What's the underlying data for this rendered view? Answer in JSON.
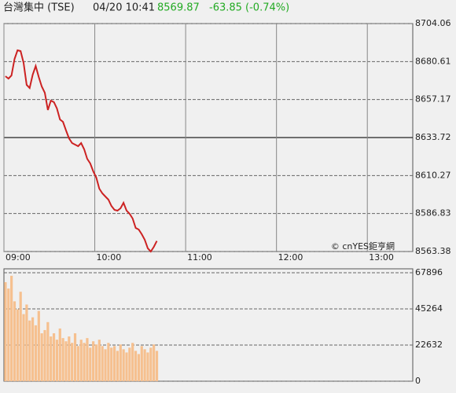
{
  "header": {
    "title": "台灣集中 (TSE)",
    "time": "04/20 10:41",
    "price": "8569.87",
    "change": "-63.85 (-0.74%)"
  },
  "watermark": "© cnYES鉅亨網",
  "chart_data": [
    {
      "type": "line",
      "color": "#cc2222",
      "x": [
        "09:01",
        "09:03",
        "09:05",
        "09:07",
        "09:09",
        "09:11",
        "09:13",
        "09:15",
        "09:17",
        "09:19",
        "09:21",
        "09:23",
        "09:25",
        "09:27",
        "09:29",
        "09:31",
        "09:33",
        "09:35",
        "09:37",
        "09:39",
        "09:41",
        "09:43",
        "09:45",
        "09:47",
        "09:49",
        "09:51",
        "09:53",
        "09:55",
        "09:57",
        "09:59",
        "10:01",
        "10:03",
        "10:05",
        "10:07",
        "10:09",
        "10:11",
        "10:13",
        "10:15",
        "10:17",
        "10:19",
        "10:21",
        "10:23",
        "10:25",
        "10:27",
        "10:29",
        "10:31",
        "10:33",
        "10:35",
        "10:37",
        "10:39",
        "10:41"
      ],
      "values": [
        8671.56,
        8670.1,
        8672.04,
        8682.23,
        8687.57,
        8687.08,
        8679.8,
        8666.22,
        8664.28,
        8672.53,
        8677.86,
        8671.07,
        8665.25,
        8661.37,
        8650.7,
        8656.52,
        8655.55,
        8651.67,
        8644.88,
        8643.42,
        8638.09,
        8633.24,
        8630.32,
        8629.35,
        8628.38,
        8630.32,
        8626.44,
        8620.62,
        8617.71,
        8612.86,
        8608.98,
        8602.19,
        8599.28,
        8597.34,
        8595.4,
        8591.52,
        8589.09,
        8588.61,
        8590.06,
        8593.46,
        8588.61,
        8586.67,
        8583.76,
        8577.93,
        8576.96,
        8574.05,
        8570.66,
        8565.32,
        8563.38,
        8566.29,
        8569.87
      ],
      "xlim": [
        "09:00",
        "13:30"
      ],
      "xticks": [
        "09:00",
        "10:00",
        "11:00",
        "12:00",
        "13:00"
      ],
      "ylim": [
        8563.38,
        8704.06
      ],
      "yticks": [
        8704.06,
        8680.61,
        8657.17,
        8633.72,
        8610.27,
        8586.83,
        8563.38
      ],
      "previous_close": 8633.72
    },
    {
      "type": "bar",
      "color": "#f6c08f",
      "x": [
        "09:01",
        "09:03",
        "09:05",
        "09:07",
        "09:09",
        "09:11",
        "09:13",
        "09:15",
        "09:17",
        "09:19",
        "09:21",
        "09:23",
        "09:25",
        "09:27",
        "09:29",
        "09:31",
        "09:33",
        "09:35",
        "09:37",
        "09:39",
        "09:41",
        "09:43",
        "09:45",
        "09:47",
        "09:49",
        "09:51",
        "09:53",
        "09:55",
        "09:57",
        "09:59",
        "10:01",
        "10:03",
        "10:05",
        "10:07",
        "10:09",
        "10:11",
        "10:13",
        "10:15",
        "10:17",
        "10:19",
        "10:21",
        "10:23",
        "10:25",
        "10:27",
        "10:29",
        "10:31",
        "10:33",
        "10:35",
        "10:37",
        "10:39",
        "10:41"
      ],
      "values": [
        62000,
        58000,
        66000,
        50000,
        45000,
        56000,
        42000,
        48000,
        38000,
        40000,
        35000,
        44000,
        30000,
        32000,
        37000,
        28000,
        30000,
        26000,
        33000,
        27000,
        25000,
        28000,
        24000,
        30000,
        22000,
        26000,
        24000,
        27000,
        21000,
        25000,
        23000,
        26000,
        22000,
        20000,
        24000,
        21000,
        22000,
        19000,
        23000,
        20000,
        18000,
        21000,
        24000,
        19000,
        17000,
        22000,
        20000,
        18000,
        21000,
        23000,
        19000
      ],
      "xlim": [
        "09:00",
        "13:30"
      ],
      "ylim": [
        0,
        67896
      ],
      "yticks": [
        67896,
        45264,
        22632,
        0
      ]
    }
  ]
}
